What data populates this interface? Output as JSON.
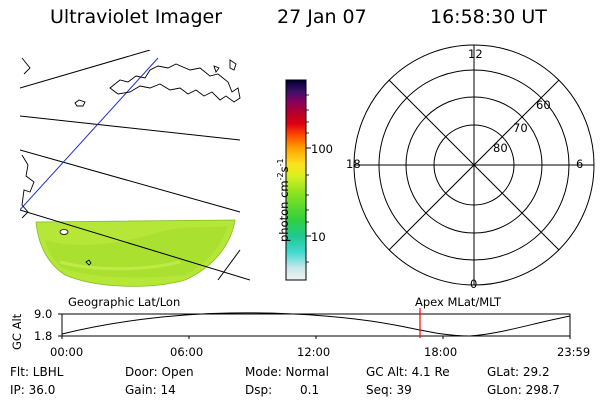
{
  "header": {
    "instrument": "Ultraviolet Imager",
    "date": "27 Jan 07",
    "time": "16:58:30 UT"
  },
  "colorbar": {
    "label": "photon cm",
    "label_exp1": "-2",
    "label_s": "s",
    "label_exp2": "-1",
    "tick_100": "100",
    "tick_10": "10"
  },
  "polar_plot": {
    "mlt_top": "12",
    "mlt_left": "18",
    "mlt_right": "6",
    "mlt_bottom": "0",
    "lat_60": "60",
    "lat_70": "70",
    "lat_80": "80"
  },
  "map_label": "Geographic Lat/Lon",
  "polar_label": "Apex MLat/MLT",
  "altitude_plot": {
    "ylabel": "GC Alt",
    "ytick_top": "9.0",
    "ytick_bottom": "1.8",
    "xticks": [
      "00:00",
      "06:00",
      "12:00",
      "18:00",
      "23:59"
    ],
    "marker_color": "#ff0000"
  },
  "status": {
    "flt": "Flt: LBHL",
    "door": "Door: Open",
    "mode": "Mode:  Normal",
    "gc_alt": "GC Alt: 4.1 Re",
    "glat": "GLat:  29.2",
    "ip": "IP: 36.0",
    "gain": "Gain: 14",
    "dsp_label": "Dsp:",
    "dsp_value": "0.1",
    "seq": "Seq: 39",
    "glon": "GLon: 298.7"
  }
}
